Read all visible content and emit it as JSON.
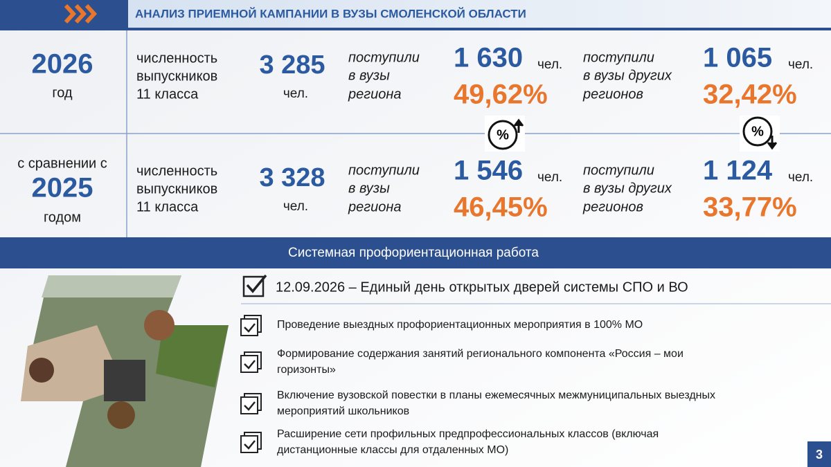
{
  "header": {
    "title": "АНАЛИЗ ПРИЕМНОЙ КАМПАНИИ В ВУЗЫ СМОЛЕНСКОЙ ОБЛАСТИ"
  },
  "rows": [
    {
      "period": [
        "2026",
        "год"
      ],
      "graduates_label": [
        "численность",
        "выпускников",
        "11 класса"
      ],
      "graduates": "3 285",
      "graduates_unit": "чел.",
      "region_label": [
        "поступили",
        "в вузы",
        "региона"
      ],
      "region_count": "1 630",
      "region_unit": "чел.",
      "region_share": "49,62%",
      "other_label": [
        "поступили",
        "в вузы других",
        "регионов"
      ],
      "other_count": "1 065",
      "other_unit": "чел.",
      "other_share": "32,42%"
    },
    {
      "period": [
        "с сравнении с",
        "2025",
        "годом"
      ],
      "graduates_label": [
        "численность",
        "выпускников",
        "11 класса"
      ],
      "graduates": "3 328",
      "graduates_unit": "чел.",
      "region_label": [
        "поступили",
        "в вузы",
        "региона"
      ],
      "region_count": "1 546",
      "region_unit": "чел.",
      "region_share": "46,45%",
      "other_label": [
        "поступили",
        "в вузы других",
        "регионов"
      ],
      "other_count": "1 124",
      "other_unit": "чел.",
      "other_share": "33,77%"
    }
  ],
  "section": {
    "title": "Системная профориентационная работа"
  },
  "highlight": "12.09.2026 – Единый день открытых дверей системы СПО и ВО",
  "items": [
    [
      "Проведение выездных профориентационных мероприятия в 100% МО"
    ],
    [
      "Формирование содержания занятий регионального компонента «Россия – мои",
      "горизонты»"
    ],
    [
      "Включение вузовской повестки в планы ежемесячных межмуниципальных выездных",
      "мероприятий школьников"
    ],
    [
      "Расширение сети профильных предпрофессиональных классов (включая",
      "дистанционные классы для отдаленных МО)"
    ]
  ],
  "page_number": "3"
}
